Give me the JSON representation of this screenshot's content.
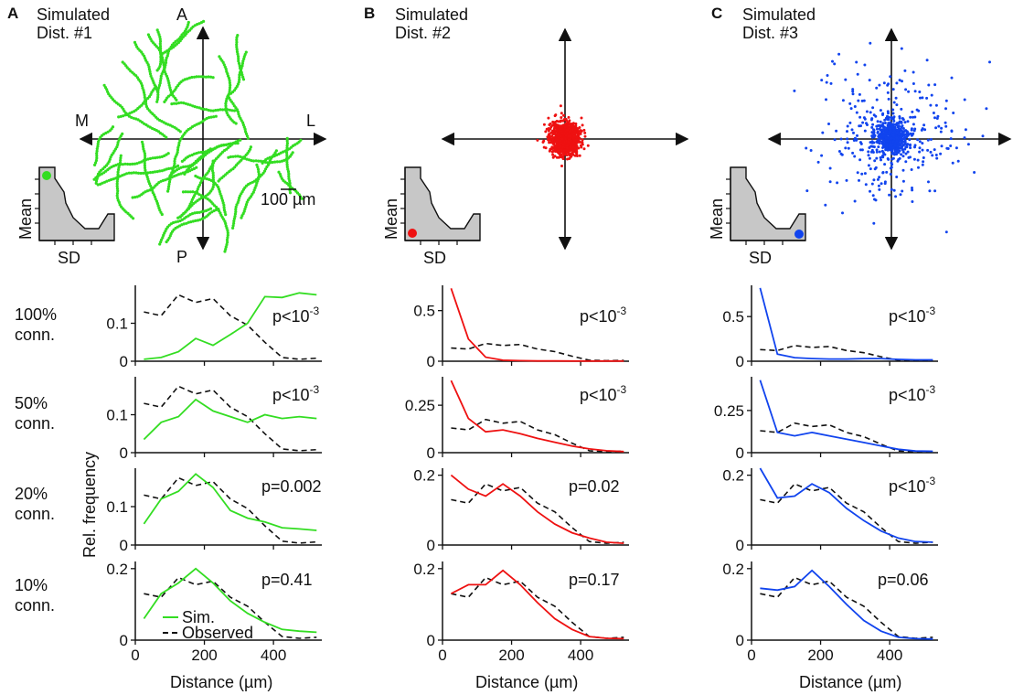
{
  "figure": {
    "panels": [
      {
        "letter": "A",
        "title_lines": [
          "Simulated",
          "Dist. #1"
        ],
        "color": "#33dd22",
        "compass": {
          "top": "A",
          "bottom": "P",
          "left": "M",
          "right": "L"
        },
        "scalebar_label": "100 µm",
        "inset": {
          "ylabel": "Mean",
          "xlabel": "SD",
          "dot": "top-left"
        },
        "scatter": "dendrite-like spread"
      },
      {
        "letter": "B",
        "title_lines": [
          "Simulated",
          "Dist. #2"
        ],
        "color": "#ee1111",
        "compass": {
          "top": "",
          "bottom": "",
          "left": "",
          "right": ""
        },
        "scalebar_label": "",
        "inset": {
          "ylabel": "Mean",
          "xlabel": "SD",
          "dot": "bottom-left"
        },
        "scatter": "tight cluster"
      },
      {
        "letter": "C",
        "title_lines": [
          "Simulated",
          "Dist. #3"
        ],
        "color": "#1144ee",
        "compass": {
          "top": "",
          "bottom": "",
          "left": "",
          "right": ""
        },
        "scalebar_label": "",
        "inset": {
          "ylabel": "Mean",
          "xlabel": "SD",
          "dot": "bottom-right"
        },
        "scatter": "dense core with wide scatter"
      }
    ],
    "row_labels": [
      [
        "100%",
        "conn."
      ],
      [
        "50%",
        "conn."
      ],
      [
        "20%",
        "conn."
      ],
      [
        "10%",
        "conn."
      ]
    ],
    "ylabel": "Rel. frequency",
    "xlabel": "Distance (µm)",
    "legend": {
      "sim": "Sim.",
      "obs": "Observed"
    }
  },
  "chart_data": {
    "type": "line",
    "x": [
      25,
      75,
      125,
      175,
      225,
      275,
      325,
      375,
      425,
      475,
      525
    ],
    "xlim": [
      0,
      540
    ],
    "xticks": [
      0,
      200,
      400
    ],
    "observed": {
      "r100": [
        0.13,
        0.12,
        0.175,
        0.155,
        0.165,
        0.12,
        0.095,
        0.05,
        0.01,
        0.005,
        0.008
      ],
      "r50": [
        0.13,
        0.12,
        0.175,
        0.155,
        0.165,
        0.12,
        0.095,
        0.05,
        0.01,
        0.005,
        0.008
      ],
      "r20": [
        0.13,
        0.12,
        0.175,
        0.155,
        0.165,
        0.12,
        0.095,
        0.05,
        0.01,
        0.005,
        0.008
      ],
      "r10": [
        0.13,
        0.12,
        0.175,
        0.155,
        0.165,
        0.12,
        0.095,
        0.05,
        0.01,
        0.005,
        0.008
      ]
    },
    "charts": [
      {
        "panel": "A",
        "row": 0,
        "pval": "p<10",
        "pexp": "-3",
        "ylim": [
          0,
          0.2
        ],
        "yticks": [
          0,
          0.1
        ],
        "ytick_labels": [
          "0",
          "0.1"
        ],
        "sim": [
          0.005,
          0.01,
          0.025,
          0.06,
          0.042,
          0.07,
          0.1,
          0.17,
          0.168,
          0.18,
          0.175
        ]
      },
      {
        "panel": "A",
        "row": 1,
        "pval": "p<10",
        "pexp": "-3",
        "ylim": [
          0,
          0.2
        ],
        "yticks": [
          0,
          0.1
        ],
        "ytick_labels": [
          "0",
          "0.1"
        ],
        "sim": [
          0.035,
          0.08,
          0.095,
          0.14,
          0.11,
          0.095,
          0.08,
          0.1,
          0.09,
          0.095,
          0.09
        ]
      },
      {
        "panel": "A",
        "row": 2,
        "pval": "p=0.002",
        "pexp": "",
        "ylim": [
          0,
          0.2
        ],
        "yticks": [
          0,
          0.1
        ],
        "ytick_labels": [
          "0",
          "0.1"
        ],
        "sim": [
          0.055,
          0.12,
          0.14,
          0.185,
          0.15,
          0.09,
          0.07,
          0.06,
          0.045,
          0.042,
          0.038
        ]
      },
      {
        "panel": "A",
        "row": 3,
        "pval": "p=0.41",
        "pexp": "",
        "ylim": [
          0,
          0.22
        ],
        "yticks": [
          0,
          0.2
        ],
        "ytick_labels": [
          "0",
          "0.2"
        ],
        "sim": [
          0.06,
          0.13,
          0.16,
          0.2,
          0.16,
          0.11,
          0.075,
          0.05,
          0.03,
          0.025,
          0.022
        ]
      },
      {
        "panel": "B",
        "row": 0,
        "pval": "p<10",
        "pexp": "-3",
        "ylim": [
          0,
          0.75
        ],
        "yticks": [
          0,
          0.5
        ],
        "ytick_labels": [
          "0",
          "0.5"
        ],
        "sim": [
          0.72,
          0.22,
          0.04,
          0.01,
          0.005,
          0.003,
          0.003,
          0.002,
          0.002,
          0.002,
          0.002
        ]
      },
      {
        "panel": "B",
        "row": 1,
        "pval": "p<10",
        "pexp": "-3",
        "ylim": [
          0,
          0.4
        ],
        "yticks": [
          0,
          0.25
        ],
        "ytick_labels": [
          "0",
          "0.25"
        ],
        "sim": [
          0.38,
          0.18,
          0.11,
          0.12,
          0.1,
          0.075,
          0.055,
          0.035,
          0.02,
          0.01,
          0.006
        ]
      },
      {
        "panel": "B",
        "row": 2,
        "pval": "p=0.02",
        "pexp": "",
        "ylim": [
          0,
          0.22
        ],
        "yticks": [
          0,
          0.2
        ],
        "ytick_labels": [
          "0",
          "0.2"
        ],
        "sim": [
          0.2,
          0.16,
          0.14,
          0.175,
          0.14,
          0.095,
          0.06,
          0.035,
          0.02,
          0.008,
          0.005
        ]
      },
      {
        "panel": "B",
        "row": 3,
        "pval": "p=0.17",
        "pexp": "",
        "ylim": [
          0,
          0.22
        ],
        "yticks": [
          0,
          0.2
        ],
        "ytick_labels": [
          "0",
          "0.2"
        ],
        "sim": [
          0.13,
          0.155,
          0.155,
          0.195,
          0.155,
          0.105,
          0.06,
          0.03,
          0.01,
          0.005,
          0.004
        ]
      },
      {
        "panel": "C",
        "row": 0,
        "pval": "p<10",
        "pexp": "-3",
        "ylim": [
          0,
          0.85
        ],
        "yticks": [
          0,
          0.5
        ],
        "ytick_labels": [
          "0",
          "0.5"
        ],
        "sim": [
          0.82,
          0.08,
          0.04,
          0.03,
          0.025,
          0.025,
          0.03,
          0.03,
          0.02,
          0.015,
          0.015
        ]
      },
      {
        "panel": "C",
        "row": 1,
        "pval": "p<10",
        "pexp": "-3",
        "ylim": [
          0,
          0.45
        ],
        "yticks": [
          0,
          0.25
        ],
        "ytick_labels": [
          "0",
          "0.25"
        ],
        "sim": [
          0.43,
          0.12,
          0.1,
          0.12,
          0.1,
          0.08,
          0.06,
          0.04,
          0.02,
          0.01,
          0.008
        ]
      },
      {
        "panel": "C",
        "row": 2,
        "pval": "p<10",
        "pexp": "-3",
        "ylim": [
          0,
          0.22
        ],
        "yticks": [
          0,
          0.2
        ],
        "ytick_labels": [
          "0",
          "0.2"
        ],
        "sim": [
          0.22,
          0.135,
          0.14,
          0.175,
          0.15,
          0.105,
          0.07,
          0.04,
          0.02,
          0.01,
          0.008
        ]
      },
      {
        "panel": "C",
        "row": 3,
        "pval": "p=0.06",
        "pexp": "",
        "ylim": [
          0,
          0.22
        ],
        "yticks": [
          0,
          0.2
        ],
        "ytick_labels": [
          "0",
          "0.2"
        ],
        "sim": [
          0.145,
          0.14,
          0.15,
          0.195,
          0.15,
          0.1,
          0.055,
          0.025,
          0.008,
          0.004,
          0.003
        ]
      }
    ]
  }
}
